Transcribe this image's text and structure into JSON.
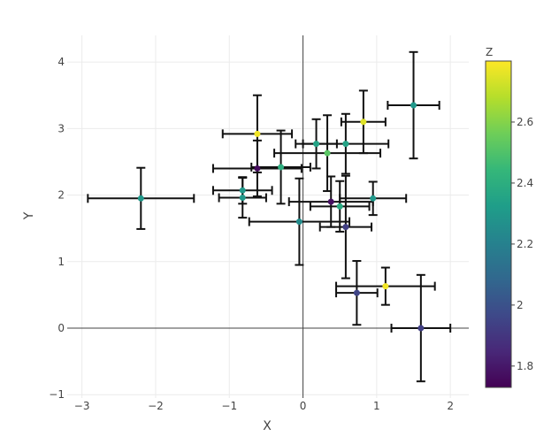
{
  "chart_data": {
    "type": "scatter",
    "title": "",
    "xlabel": "X",
    "ylabel": "Y",
    "xlim": [
      -3.2,
      2.25
    ],
    "ylim": [
      -1.05,
      4.4
    ],
    "xticks": [
      -3,
      -2,
      -1,
      0,
      1,
      2
    ],
    "yticks": [
      -1,
      0,
      1,
      2,
      3,
      4
    ],
    "grid": true,
    "zeroline": true,
    "colorbar": {
      "title": "Z",
      "range": [
        1.73,
        2.8
      ],
      "ticks": [
        1.8,
        2,
        2.2,
        2.4,
        2.6
      ],
      "colorscale": "Viridis"
    },
    "points": [
      {
        "x": -2.2,
        "y": 1.95,
        "xerr": 0.72,
        "yerr": 0.46,
        "z": 2.3
      },
      {
        "x": -0.62,
        "y": 2.92,
        "xerr": 0.47,
        "yerr": 0.58,
        "z": 2.78
      },
      {
        "x": -0.62,
        "y": 2.4,
        "xerr": 0.6,
        "yerr": 0.42,
        "z": 1.76
      },
      {
        "x": -0.82,
        "y": 2.07,
        "xerr": 0.4,
        "yerr": 0.2,
        "z": 2.3
      },
      {
        "x": -0.82,
        "y": 1.96,
        "xerr": 0.32,
        "yerr": 0.3,
        "z": 2.3
      },
      {
        "x": -0.3,
        "y": 2.42,
        "xerr": 0.4,
        "yerr": 0.55,
        "z": 2.4
      },
      {
        "x": 0.18,
        "y": 2.77,
        "xerr": 0.28,
        "yerr": 0.37,
        "z": 2.35
      },
      {
        "x": 0.58,
        "y": 2.77,
        "xerr": 0.58,
        "yerr": 0.45,
        "z": 2.35
      },
      {
        "x": 0.33,
        "y": 2.63,
        "xerr": 0.72,
        "yerr": 0.57,
        "z": 2.52
      },
      {
        "x": 0.82,
        "y": 3.1,
        "xerr": 0.3,
        "yerr": 0.47,
        "z": 2.75
      },
      {
        "x": 1.5,
        "y": 3.35,
        "xerr": 0.35,
        "yerr": 0.8,
        "z": 2.3
      },
      {
        "x": -0.05,
        "y": 1.6,
        "xerr": 0.68,
        "yerr": 0.65,
        "z": 2.25
      },
      {
        "x": 0.38,
        "y": 1.9,
        "xerr": 0.57,
        "yerr": 0.38,
        "z": 1.77
      },
      {
        "x": 0.5,
        "y": 1.83,
        "xerr": 0.4,
        "yerr": 0.38,
        "z": 2.38
      },
      {
        "x": 0.95,
        "y": 1.95,
        "xerr": 0.45,
        "yerr": 0.25,
        "z": 2.3
      },
      {
        "x": 0.58,
        "y": 1.52,
        "xerr": 0.35,
        "yerr": 0.77,
        "z": 1.93
      },
      {
        "x": 0.73,
        "y": 0.53,
        "xerr": 0.28,
        "yerr": 0.48,
        "z": 1.95
      },
      {
        "x": 1.12,
        "y": 0.63,
        "xerr": 0.67,
        "yerr": 0.28,
        "z": 2.78
      },
      {
        "x": 1.6,
        "y": 0.0,
        "xerr": 0.4,
        "yerr": 0.8,
        "z": 1.93
      }
    ]
  }
}
